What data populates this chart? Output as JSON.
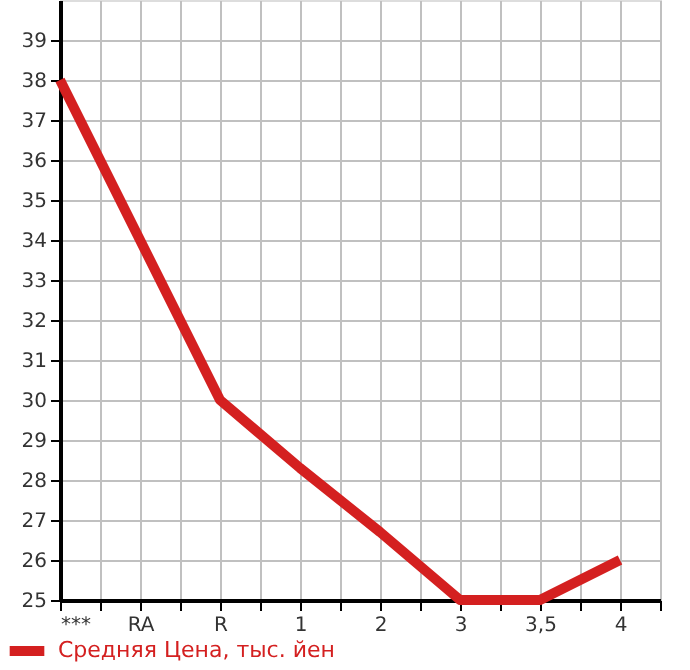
{
  "chart_data": {
    "type": "line",
    "categories": [
      "***",
      "RA",
      "R",
      "1",
      "2",
      "3",
      "3,5",
      "4"
    ],
    "series": [
      {
        "name": "Средняя Цена, тыс. йен",
        "color": "#d42020",
        "values": [
          38,
          34,
          30,
          28.3,
          26.7,
          25,
          25,
          26
        ]
      }
    ],
    "ylim": [
      25,
      40
    ],
    "yticks": [
      25,
      26,
      27,
      28,
      29,
      30,
      31,
      32,
      33,
      34,
      35,
      36,
      37,
      38,
      39
    ],
    "grid": true,
    "legend": "bottom left",
    "marker": "none",
    "line_style": "solid"
  }
}
